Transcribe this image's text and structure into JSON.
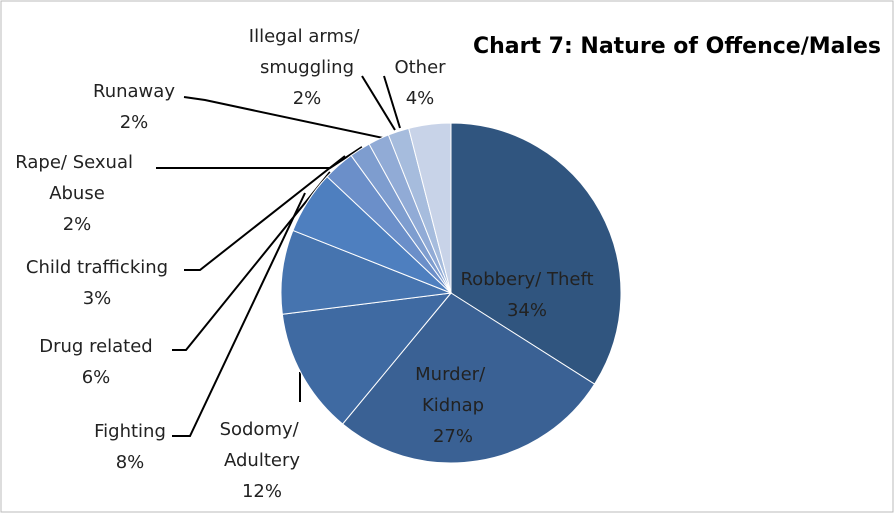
{
  "chart_data": {
    "type": "pie",
    "title": "Chart 7: Nature of Offence/Males",
    "categories": [
      "Robbery/ Theft",
      "Murder/ Kidnap",
      "Sodomy/ Adultery",
      "Fighting",
      "Drug related",
      "Child trafficking",
      "Rape/ Sexual Abuse",
      "Runaway",
      "Illegal arms/ smuggling",
      "Other"
    ],
    "values": [
      34,
      27,
      12,
      8,
      6,
      3,
      2,
      2,
      2,
      4
    ],
    "value_labels": [
      "34%",
      "27%",
      "12%",
      "8%",
      "6%",
      "3%",
      "2%",
      "2%",
      "2%",
      "4%"
    ],
    "colors": [
      "#30557f",
      "#3a6194",
      "#3f6aa2",
      "#4674af",
      "#4e7fbf",
      "#6b8fc9",
      "#7e9dcf",
      "#91abd6",
      "#a6bcdd",
      "#c8d3e8"
    ]
  }
}
